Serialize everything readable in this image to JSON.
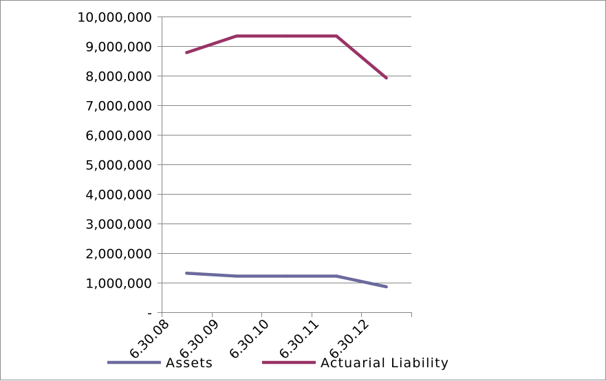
{
  "chart_data": {
    "type": "line",
    "categories": [
      "6.30.08",
      "6.30.09",
      "6.30.10",
      "6.30.11",
      "6.30.12"
    ],
    "series": [
      {
        "name": "Assets",
        "color": "#6b6a9e",
        "values": [
          1320000,
          1220000,
          1220000,
          1220000,
          860000
        ]
      },
      {
        "name": "Actuarial Liability",
        "color": "#993366",
        "values": [
          8780000,
          9340000,
          9340000,
          9340000,
          7920000
        ]
      }
    ],
    "y_ticks": [
      {
        "value": 0,
        "label": "-"
      },
      {
        "value": 1000000,
        "label": "1,000,000"
      },
      {
        "value": 2000000,
        "label": "2,000,000"
      },
      {
        "value": 3000000,
        "label": "3,000,000"
      },
      {
        "value": 4000000,
        "label": "4,000,000"
      },
      {
        "value": 5000000,
        "label": "5,000,000"
      },
      {
        "value": 6000000,
        "label": "6,000,000"
      },
      {
        "value": 7000000,
        "label": "7,000,000"
      },
      {
        "value": 8000000,
        "label": "8,000,000"
      },
      {
        "value": 9000000,
        "label": "9,000,000"
      },
      {
        "value": 10000000,
        "label": "10,000,000"
      }
    ],
    "ylim": [
      0,
      10000000
    ],
    "grid": true,
    "legend": "bottom",
    "axis_color": "#868686",
    "grid_color": "#868686"
  }
}
